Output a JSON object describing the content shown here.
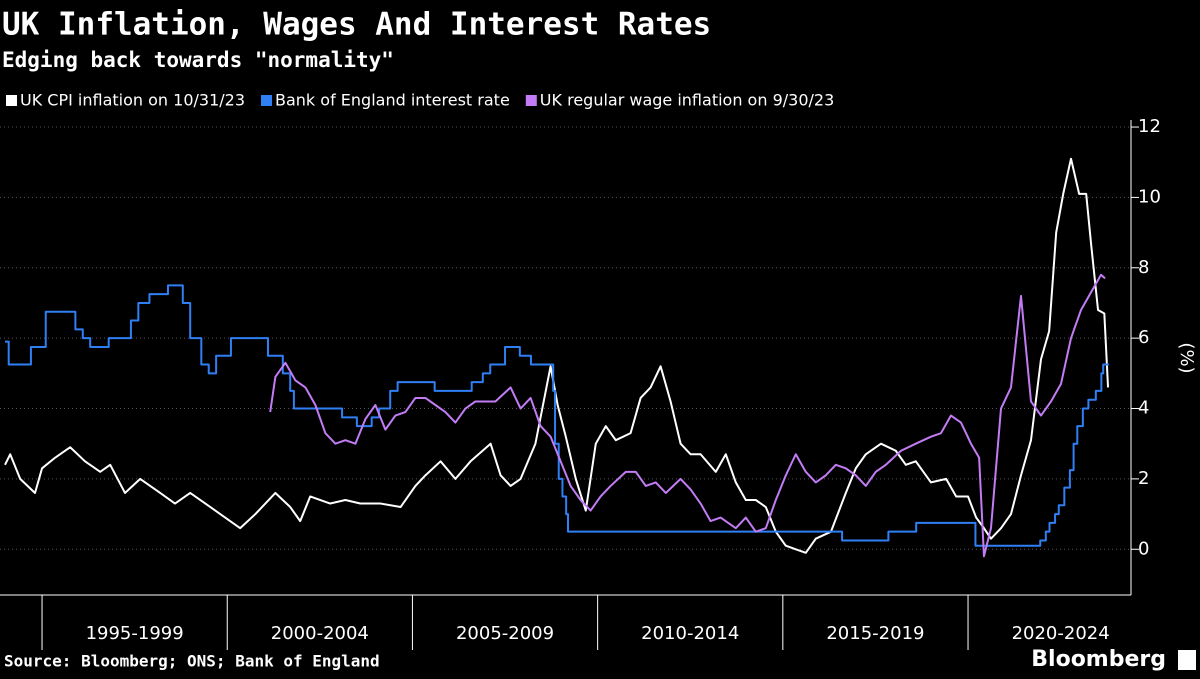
{
  "chart_data": {
    "type": "line",
    "title": "UK Inflation, Wages And Interest Rates",
    "subtitle": "Edging back towards \"normality\"",
    "y_label": "(%)",
    "source": "Source: Bloomberg; ONS; Bank of England",
    "brand": "Bloomberg",
    "xlim": [
      1994,
      2024.4
    ],
    "ylim": [
      -1.3,
      12.2
    ],
    "yticks": [
      0,
      2,
      4,
      6,
      8,
      10,
      12
    ],
    "xticks": [
      {
        "value": 1997.5,
        "label": "1995-1999"
      },
      {
        "value": 2002.5,
        "label": "2000-2004"
      },
      {
        "value": 2007.5,
        "label": "2005-2009"
      },
      {
        "value": 2012.5,
        "label": "2010-2014"
      },
      {
        "value": 2017.5,
        "label": "2015-2019"
      },
      {
        "value": 2022.5,
        "label": "2020-2024"
      }
    ],
    "grid": true,
    "series": [
      {
        "name": "UK CPI inflation on 10/31/23",
        "color": "#ffffff",
        "x": [
          1994.0,
          1994.14,
          1994.41,
          1994.81,
          1995.0,
          1995.35,
          1995.76,
          1996.16,
          1996.57,
          1996.84,
          1997.24,
          1997.65,
          1998.19,
          1998.59,
          1999.0,
          1999.41,
          1999.81,
          2000.35,
          2000.76,
          2001.3,
          2001.7,
          2001.97,
          2002.24,
          2002.78,
          2003.19,
          2003.59,
          2004.14,
          2004.68,
          2005.08,
          2005.35,
          2005.76,
          2006.16,
          2006.57,
          2007.11,
          2007.38,
          2007.65,
          2007.92,
          2008.32,
          2008.73,
          2008.92,
          2009.14,
          2009.41,
          2009.68,
          2009.95,
          2010.22,
          2010.49,
          2010.89,
          2011.16,
          2011.43,
          2011.7,
          2011.97,
          2012.24,
          2012.51,
          2012.78,
          2013.19,
          2013.46,
          2013.73,
          2014.0,
          2014.27,
          2014.54,
          2014.81,
          2015.08,
          2015.35,
          2015.62,
          2015.89,
          2016.3,
          2016.7,
          2016.97,
          2017.24,
          2017.65,
          2018.05,
          2018.32,
          2018.59,
          2019.0,
          2019.41,
          2019.68,
          2020.0,
          2020.22,
          2020.43,
          2020.62,
          2020.89,
          2021.16,
          2021.43,
          2021.7,
          2021.97,
          2022.19,
          2022.38,
          2022.57,
          2022.78,
          2023.0,
          2023.19,
          2023.32,
          2023.51,
          2023.68,
          2023.78
        ],
        "values": [
          2.4,
          2.7,
          2.0,
          1.6,
          2.3,
          2.6,
          2.9,
          2.5,
          2.2,
          2.4,
          1.6,
          2.0,
          1.6,
          1.3,
          1.6,
          1.3,
          1.0,
          0.6,
          1.0,
          1.6,
          1.2,
          0.8,
          1.5,
          1.3,
          1.4,
          1.3,
          1.3,
          1.2,
          1.8,
          2.1,
          2.5,
          2.0,
          2.5,
          3.0,
          2.1,
          1.8,
          2.0,
          3.0,
          5.2,
          4.1,
          3.2,
          2.0,
          1.1,
          3.0,
          3.5,
          3.1,
          3.3,
          4.3,
          4.6,
          5.2,
          4.2,
          3.0,
          2.7,
          2.7,
          2.2,
          2.7,
          1.9,
          1.4,
          1.4,
          1.2,
          0.5,
          0.1,
          0.0,
          -0.1,
          0.3,
          0.5,
          1.6,
          2.3,
          2.7,
          3.0,
          2.8,
          2.4,
          2.5,
          1.9,
          2.0,
          1.5,
          1.5,
          0.9,
          0.6,
          0.3,
          0.6,
          1.0,
          2.1,
          3.1,
          5.4,
          6.2,
          9.0,
          10.1,
          11.1,
          10.1,
          10.1,
          8.7,
          6.8,
          6.7,
          4.6
        ]
      },
      {
        "name": "Bank of England interest rate",
        "color": "#2f7ff5",
        "step": true,
        "x": [
          1994.0,
          1994.1,
          1994.7,
          1995.1,
          1995.9,
          1996.1,
          1996.3,
          1996.8,
          1997.4,
          1997.6,
          1997.9,
          1998.4,
          1998.8,
          1999.0,
          1999.3,
          1999.5,
          1999.7,
          2000.1,
          2001.1,
          2001.5,
          2001.7,
          2001.8,
          2003.1,
          2003.5,
          2003.9,
          2004.1,
          2004.4,
          2004.6,
          2005.6,
          2006.6,
          2006.9,
          2007.1,
          2007.5,
          2007.9,
          2008.2,
          2008.8,
          2008.85,
          2008.95,
          2009.05,
          2009.15,
          2009.2,
          2016.6,
          2017.85,
          2018.6,
          2020.2,
          2021.95,
          2022.1,
          2022.2,
          2022.35,
          2022.45,
          2022.6,
          2022.75,
          2022.85,
          2022.95,
          2023.1,
          2023.25,
          2023.45,
          2023.6,
          2023.65,
          2023.8
        ],
        "values": [
          5.9,
          5.25,
          5.75,
          6.75,
          6.25,
          6.0,
          5.75,
          6.0,
          6.5,
          7.0,
          7.25,
          7.5,
          7.0,
          6.0,
          5.25,
          5.0,
          5.5,
          6.0,
          5.5,
          5.0,
          4.5,
          4.0,
          3.75,
          3.5,
          3.75,
          4.0,
          4.5,
          4.75,
          4.5,
          4.75,
          5.0,
          5.25,
          5.75,
          5.5,
          5.25,
          4.5,
          3.0,
          2.0,
          1.5,
          1.0,
          0.5,
          0.25,
          0.5,
          0.75,
          0.1,
          0.25,
          0.5,
          0.75,
          1.0,
          1.25,
          1.75,
          2.25,
          3.0,
          3.5,
          4.0,
          4.25,
          4.5,
          5.0,
          5.25,
          5.25
        ]
      },
      {
        "name": "UK regular wage inflation on 9/30/23",
        "color": "#c27cf5",
        "x": [
          2001.16,
          2001.3,
          2001.57,
          2001.84,
          2002.11,
          2002.38,
          2002.65,
          2002.92,
          2003.19,
          2003.46,
          2003.73,
          2004.0,
          2004.27,
          2004.54,
          2004.81,
          2005.08,
          2005.35,
          2005.62,
          2005.89,
          2006.16,
          2006.43,
          2006.7,
          2006.97,
          2007.24,
          2007.65,
          2007.92,
          2008.19,
          2008.46,
          2008.73,
          2009.0,
          2009.27,
          2009.54,
          2009.81,
          2010.08,
          2010.35,
          2010.76,
          2011.03,
          2011.3,
          2011.57,
          2011.84,
          2012.24,
          2012.51,
          2012.78,
          2013.05,
          2013.32,
          2013.73,
          2014.0,
          2014.27,
          2014.54,
          2014.81,
          2015.08,
          2015.35,
          2015.62,
          2015.89,
          2016.16,
          2016.43,
          2016.7,
          2016.97,
          2017.24,
          2017.51,
          2017.78,
          2018.19,
          2018.59,
          2019.0,
          2019.27,
          2019.54,
          2019.81,
          2020.08,
          2020.3,
          2020.43,
          2020.62,
          2020.89,
          2021.16,
          2021.43,
          2021.7,
          2021.97,
          2022.24,
          2022.51,
          2022.78,
          2023.05,
          2023.32,
          2023.59,
          2023.7
        ],
        "values": [
          3.9,
          4.9,
          5.3,
          4.8,
          4.6,
          4.1,
          3.3,
          3.0,
          3.1,
          3.0,
          3.7,
          4.1,
          3.4,
          3.8,
          3.9,
          4.3,
          4.3,
          4.1,
          3.9,
          3.6,
          4.0,
          4.2,
          4.2,
          4.2,
          4.6,
          4.0,
          4.3,
          3.5,
          3.2,
          2.5,
          1.8,
          1.4,
          1.1,
          1.5,
          1.8,
          2.2,
          2.2,
          1.8,
          1.9,
          1.6,
          2.0,
          1.7,
          1.3,
          0.8,
          0.9,
          0.6,
          0.9,
          0.5,
          0.6,
          1.4,
          2.1,
          2.7,
          2.2,
          1.9,
          2.1,
          2.4,
          2.3,
          2.1,
          1.8,
          2.2,
          2.4,
          2.8,
          3.0,
          3.2,
          3.3,
          3.8,
          3.6,
          3.0,
          2.6,
          -0.2,
          0.6,
          4.0,
          4.6,
          7.2,
          4.2,
          3.8,
          4.2,
          4.7,
          6.0,
          6.8,
          7.3,
          7.8,
          7.7
        ]
      }
    ]
  }
}
